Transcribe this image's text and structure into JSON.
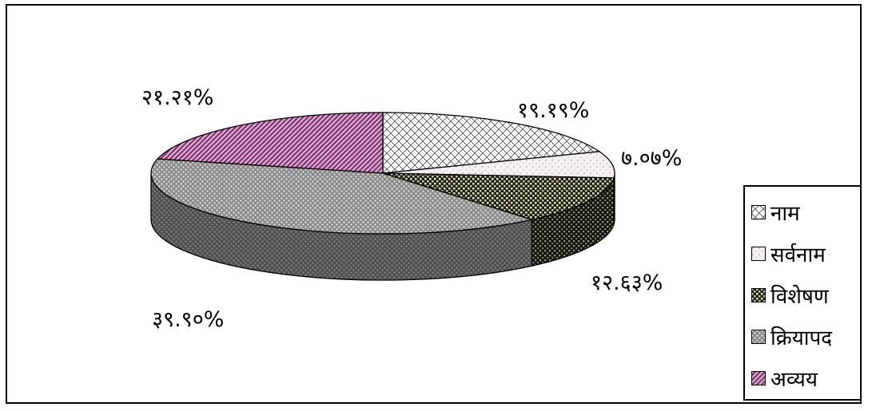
{
  "chart_data": {
    "type": "pie",
    "style": "3d",
    "categories": [
      "नाम",
      "सर्वनाम",
      "विशेषण",
      "क्रियापद",
      "अव्यय"
    ],
    "values": [
      19.19,
      7.07,
      12.63,
      39.9,
      21.21
    ],
    "data_labels": [
      "१९.१९%",
      "७.०७%",
      "१२.६३%",
      "३९.९०%",
      "२१.२१%"
    ],
    "legend_position": "right",
    "colors": {
      "नाम": "#ffffff",
      "सर्वनाम": "#f4eef0",
      "विशेषण": "#3a3a2a",
      "क्रियापद": "#a0a0a0",
      "अव्यय": "#a8508f"
    }
  }
}
